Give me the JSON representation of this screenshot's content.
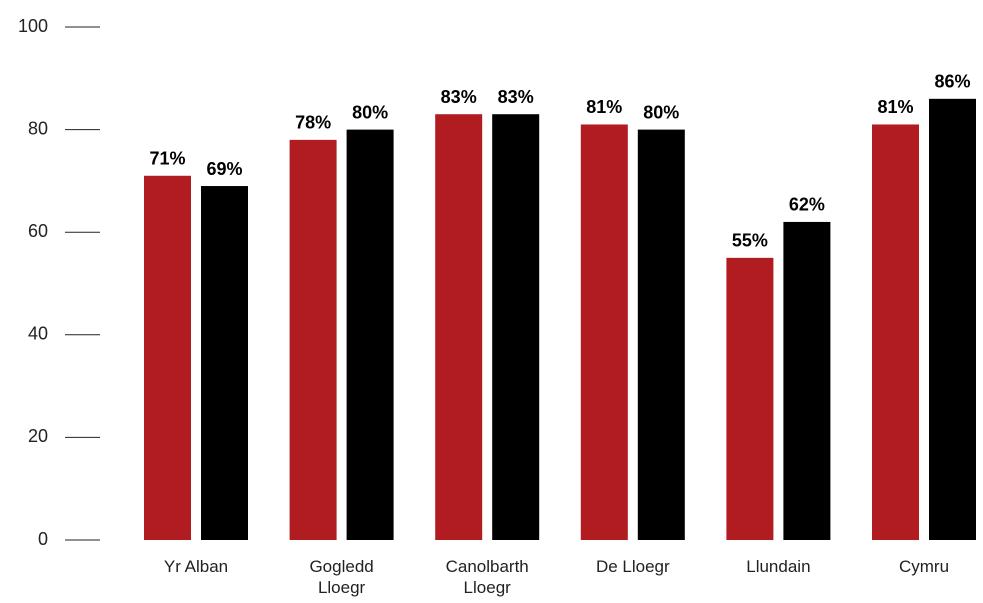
{
  "chart_data": {
    "type": "bar",
    "categories": [
      "Yr Alban",
      "Gogledd Lloegr",
      "Canolbarth Lloegr",
      "De Lloegr",
      "Llundain",
      "Cymru"
    ],
    "series": [
      {
        "color": "#b01c1f",
        "values": [
          71,
          78,
          83,
          81,
          55,
          81
        ],
        "value_labels": [
          "71%",
          "78%",
          "83%",
          "81%",
          "55%",
          "81%"
        ]
      },
      {
        "color": "#000000",
        "values": [
          69,
          80,
          83,
          80,
          62,
          86
        ],
        "value_labels": [
          "69%",
          "80%",
          "83%",
          "80%",
          "62%",
          "86%"
        ]
      }
    ],
    "ylim": [
      0,
      100
    ],
    "yticks": [
      0,
      20,
      40,
      60,
      80,
      100
    ],
    "grid": false
  }
}
